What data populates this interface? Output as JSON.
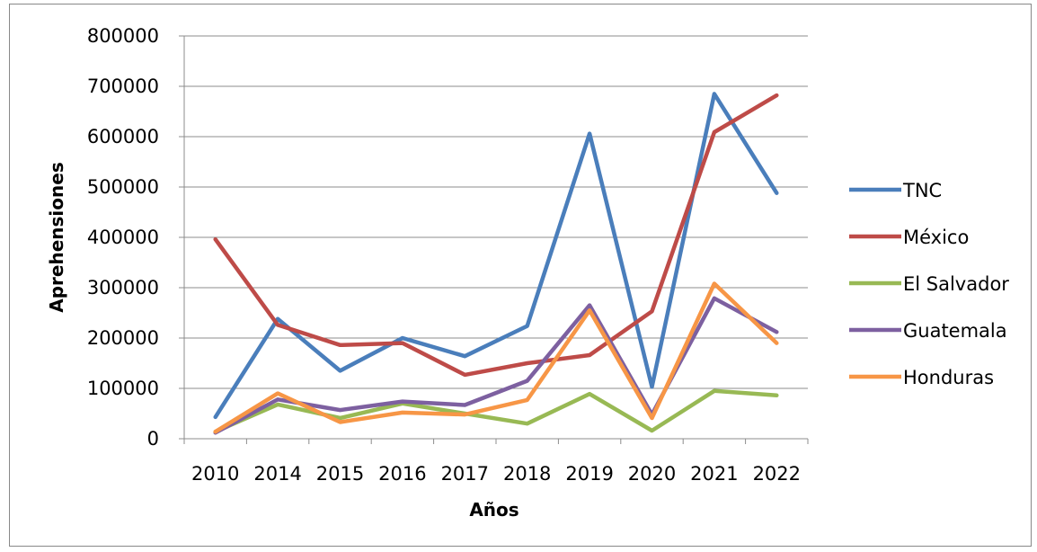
{
  "chart_data": {
    "type": "line",
    "title": "",
    "xlabel": "Años",
    "ylabel": "Aprehensiones",
    "categories": [
      "2010",
      "2014",
      "2015",
      "2016",
      "2017",
      "2018",
      "2019",
      "2020",
      "2021",
      "2022"
    ],
    "ylim": [
      0,
      800000
    ],
    "yticks": [
      0,
      100000,
      200000,
      300000,
      400000,
      500000,
      600000,
      700000,
      800000
    ],
    "ytick_labels": [
      "0",
      "100000",
      "200000",
      "300000",
      "400000",
      "500000",
      "600000",
      "700000",
      "800000"
    ],
    "grid": "horizontal",
    "legend_position": "right",
    "series": [
      {
        "name": "TNC",
        "color": "#4a7ebb",
        "values": [
          43000,
          238000,
          135000,
          200000,
          164000,
          224000,
          606000,
          103000,
          685000,
          488000
        ]
      },
      {
        "name": "México",
        "color": "#be4b48",
        "values": [
          396000,
          226000,
          186000,
          190000,
          127000,
          150000,
          166000,
          253000,
          609000,
          682000
        ]
      },
      {
        "name": "El Salvador",
        "color": "#98b954",
        "values": [
          14000,
          68000,
          41000,
          70000,
          50000,
          30000,
          89000,
          16000,
          95000,
          86000
        ]
      },
      {
        "name": "Guatemala",
        "color": "#7d60a0",
        "values": [
          12000,
          78000,
          57000,
          74000,
          67000,
          115000,
          265000,
          48000,
          279000,
          212000
        ]
      },
      {
        "name": "Honduras",
        "color": "#f79646",
        "values": [
          14000,
          90000,
          33000,
          52000,
          48000,
          77000,
          255000,
          41000,
          308000,
          190000
        ]
      }
    ]
  }
}
